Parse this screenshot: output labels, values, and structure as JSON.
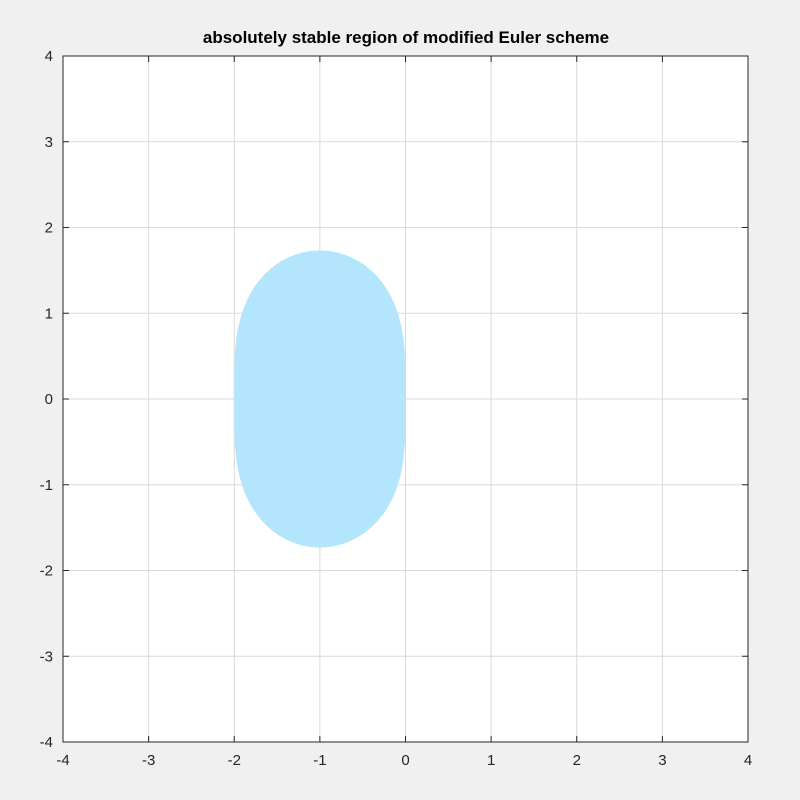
{
  "window": {
    "background_color": "#f0f0f0"
  },
  "chart_data": {
    "type": "area",
    "title": "absolutely stable region of modified Euler scheme",
    "xlabel": "",
    "ylabel": "",
    "xlim": [
      -4,
      4
    ],
    "ylim": [
      -4,
      4
    ],
    "xticks": [
      -4,
      -3,
      -2,
      -1,
      0,
      1,
      2,
      3,
      4
    ],
    "yticks": [
      -4,
      -3,
      -2,
      -1,
      0,
      1,
      2,
      3,
      4
    ],
    "xtick_labels": [
      "-4",
      "-3",
      "-2",
      "-1",
      "0",
      "1",
      "2",
      "3",
      "4"
    ],
    "ytick_labels": [
      "-4",
      "-3",
      "-2",
      "-1",
      "0",
      "1",
      "2",
      "3",
      "4"
    ],
    "grid": true,
    "legend": "none",
    "axes_background": "#ffffff",
    "grid_color": "#d9d9d9",
    "series": [
      {
        "kind": "filled-region",
        "description_of_boundary": "|1 + z + z^2/2| <= 1",
        "color": "#b3e5fc",
        "x_extent": [
          -2,
          0
        ],
        "y_extent": [
          -1.73,
          1.73
        ]
      }
    ]
  }
}
